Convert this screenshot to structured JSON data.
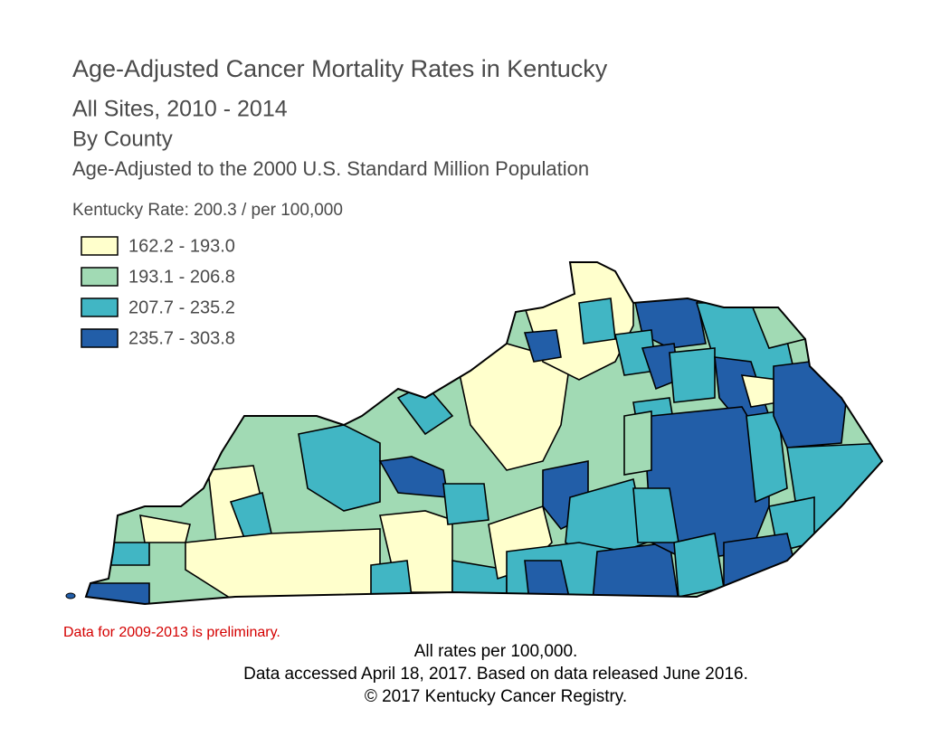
{
  "header": {
    "title": "Age-Adjusted Cancer Mortality Rates in Kentucky",
    "subtitle": "All Sites, 2010 - 2014",
    "grouping": "By County",
    "adjustment": "Age-Adjusted to the 2000 U.S. Standard Million Population",
    "state_rate": "Kentucky Rate: 200.3 / per 100,000"
  },
  "legend": {
    "items": [
      {
        "label": "162.2 - 193.0",
        "color": "#ffffcc"
      },
      {
        "label": "193.1 - 206.8",
        "color": "#a1dab4"
      },
      {
        "label": "207.7 - 235.2",
        "color": "#41b6c4"
      },
      {
        "label": "235.7 - 303.8",
        "color": "#225ea8"
      }
    ]
  },
  "notes": {
    "preliminary": "Data for 2009-2013 is preliminary.",
    "units": "All rates per 100,000.",
    "source": "Data accessed April 18, 2017. Based on data released June 2016.",
    "copyright": "© 2017 Kentucky Cancer Registry."
  }
}
